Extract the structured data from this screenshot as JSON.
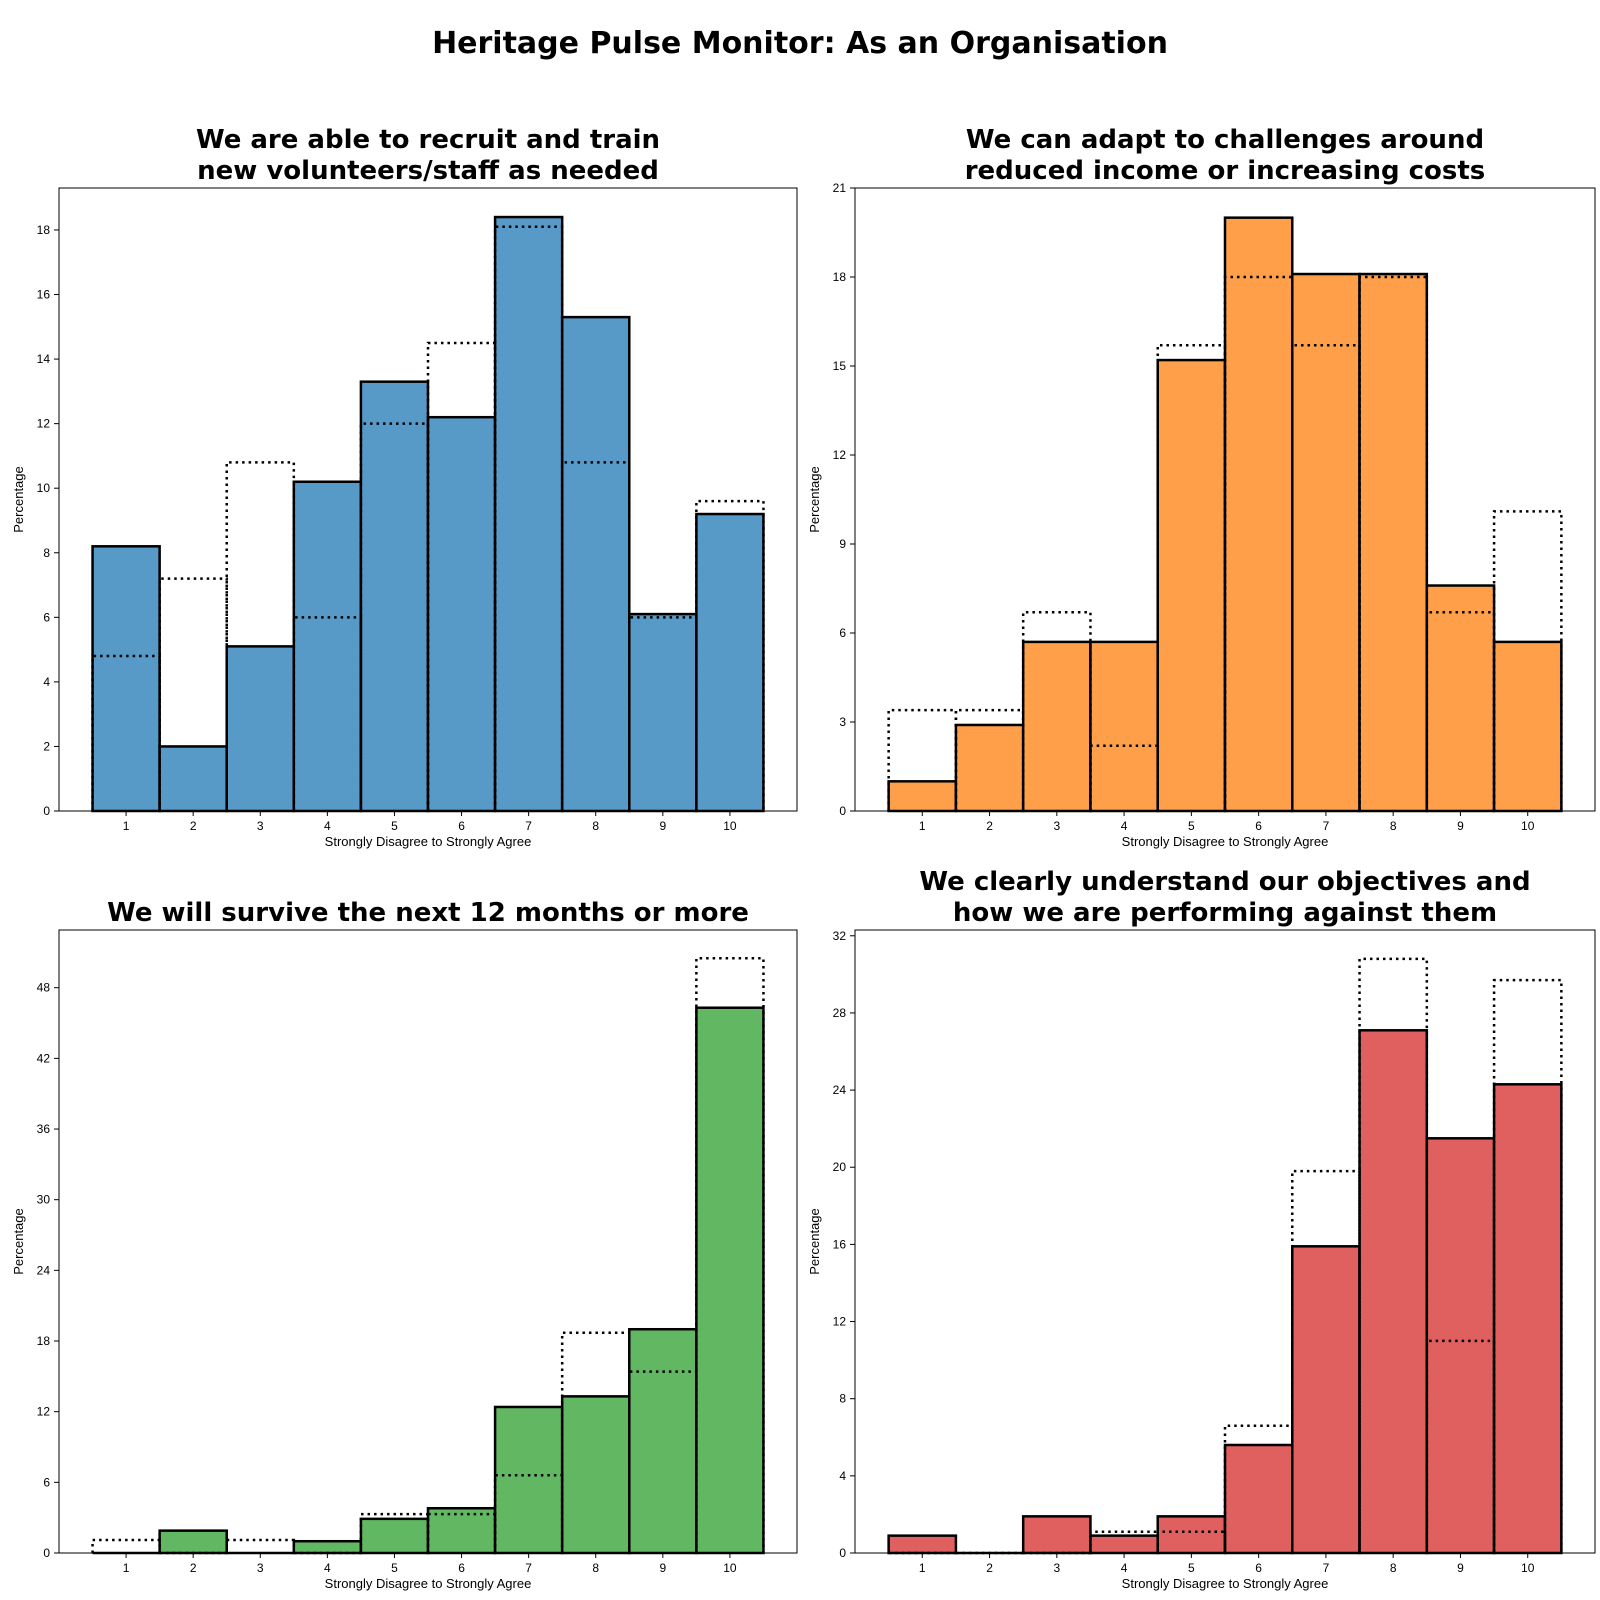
{
  "title": "Heritage Pulse Monitor: As an Organisation",
  "chart_data": [
    {
      "type": "bar",
      "title": [
        "We are able to recruit and train",
        "new volunteers/staff as needed"
      ],
      "xlabel": "Strongly Disagree to Strongly Agree",
      "ylabel": "Percentage",
      "categories": [
        "1",
        "2",
        "3",
        "4",
        "5",
        "6",
        "7",
        "8",
        "9",
        "10"
      ],
      "values": [
        8.2,
        2.0,
        5.1,
        10.2,
        13.3,
        12.2,
        18.4,
        15.3,
        6.1,
        9.2
      ],
      "comparison": [
        4.8,
        7.2,
        10.8,
        6.0,
        12.0,
        14.5,
        18.1,
        10.8,
        6.0,
        9.6
      ],
      "ylim": [
        0,
        19.3
      ],
      "yticks": [
        0,
        2,
        4,
        6,
        8,
        10,
        12,
        14,
        16,
        18
      ],
      "color": "#5799c7"
    },
    {
      "type": "bar",
      "title": [
        "We can adapt to challenges around",
        "reduced income or increasing costs"
      ],
      "xlabel": "Strongly Disagree to Strongly Agree",
      "ylabel": "Percentage",
      "categories": [
        "1",
        "2",
        "3",
        "4",
        "5",
        "6",
        "7",
        "8",
        "9",
        "10"
      ],
      "values": [
        1.0,
        2.9,
        5.7,
        5.7,
        15.2,
        20.0,
        18.1,
        18.1,
        7.6,
        5.7
      ],
      "comparison": [
        3.4,
        3.4,
        6.7,
        2.2,
        15.7,
        18.0,
        15.7,
        18.0,
        6.7,
        10.1
      ],
      "ylim": [
        0,
        21
      ],
      "yticks": [
        0,
        3,
        6,
        9,
        12,
        15,
        18,
        21
      ],
      "color": "#ff9f4a"
    },
    {
      "type": "bar",
      "title": [
        "We will survive the next 12 months or more"
      ],
      "xlabel": "Strongly Disagree to Strongly Agree",
      "ylabel": "Percentage",
      "categories": [
        "1",
        "2",
        "3",
        "4",
        "5",
        "6",
        "7",
        "8",
        "9",
        "10"
      ],
      "values": [
        0,
        1.9,
        0,
        1.0,
        2.9,
        3.8,
        12.4,
        13.3,
        19.0,
        46.3
      ],
      "comparison": [
        1.1,
        0,
        1.1,
        0,
        3.3,
        3.3,
        6.6,
        18.7,
        15.4,
        50.5
      ],
      "ylim": [
        0,
        52.9
      ],
      "yticks": [
        0,
        6,
        12,
        18,
        24,
        30,
        36,
        42,
        48
      ],
      "color": "#62b862"
    },
    {
      "type": "bar",
      "title": [
        "We clearly understand our objectives and",
        "how we are performing against them"
      ],
      "xlabel": "Strongly Disagree to Strongly Agree",
      "ylabel": "Percentage",
      "categories": [
        "1",
        "2",
        "3",
        "4",
        "5",
        "6",
        "7",
        "8",
        "9",
        "10"
      ],
      "values": [
        0.9,
        0,
        1.9,
        0.9,
        1.9,
        5.6,
        15.9,
        27.1,
        21.5,
        24.3
      ],
      "comparison": [
        0,
        0,
        0,
        1.1,
        1.1,
        6.6,
        19.8,
        30.8,
        11.0,
        29.7
      ],
      "ylim": [
        0,
        32.3
      ],
      "yticks": [
        0,
        4,
        8,
        12,
        16,
        20,
        24,
        28,
        32
      ],
      "color": "#e05f5f"
    }
  ]
}
